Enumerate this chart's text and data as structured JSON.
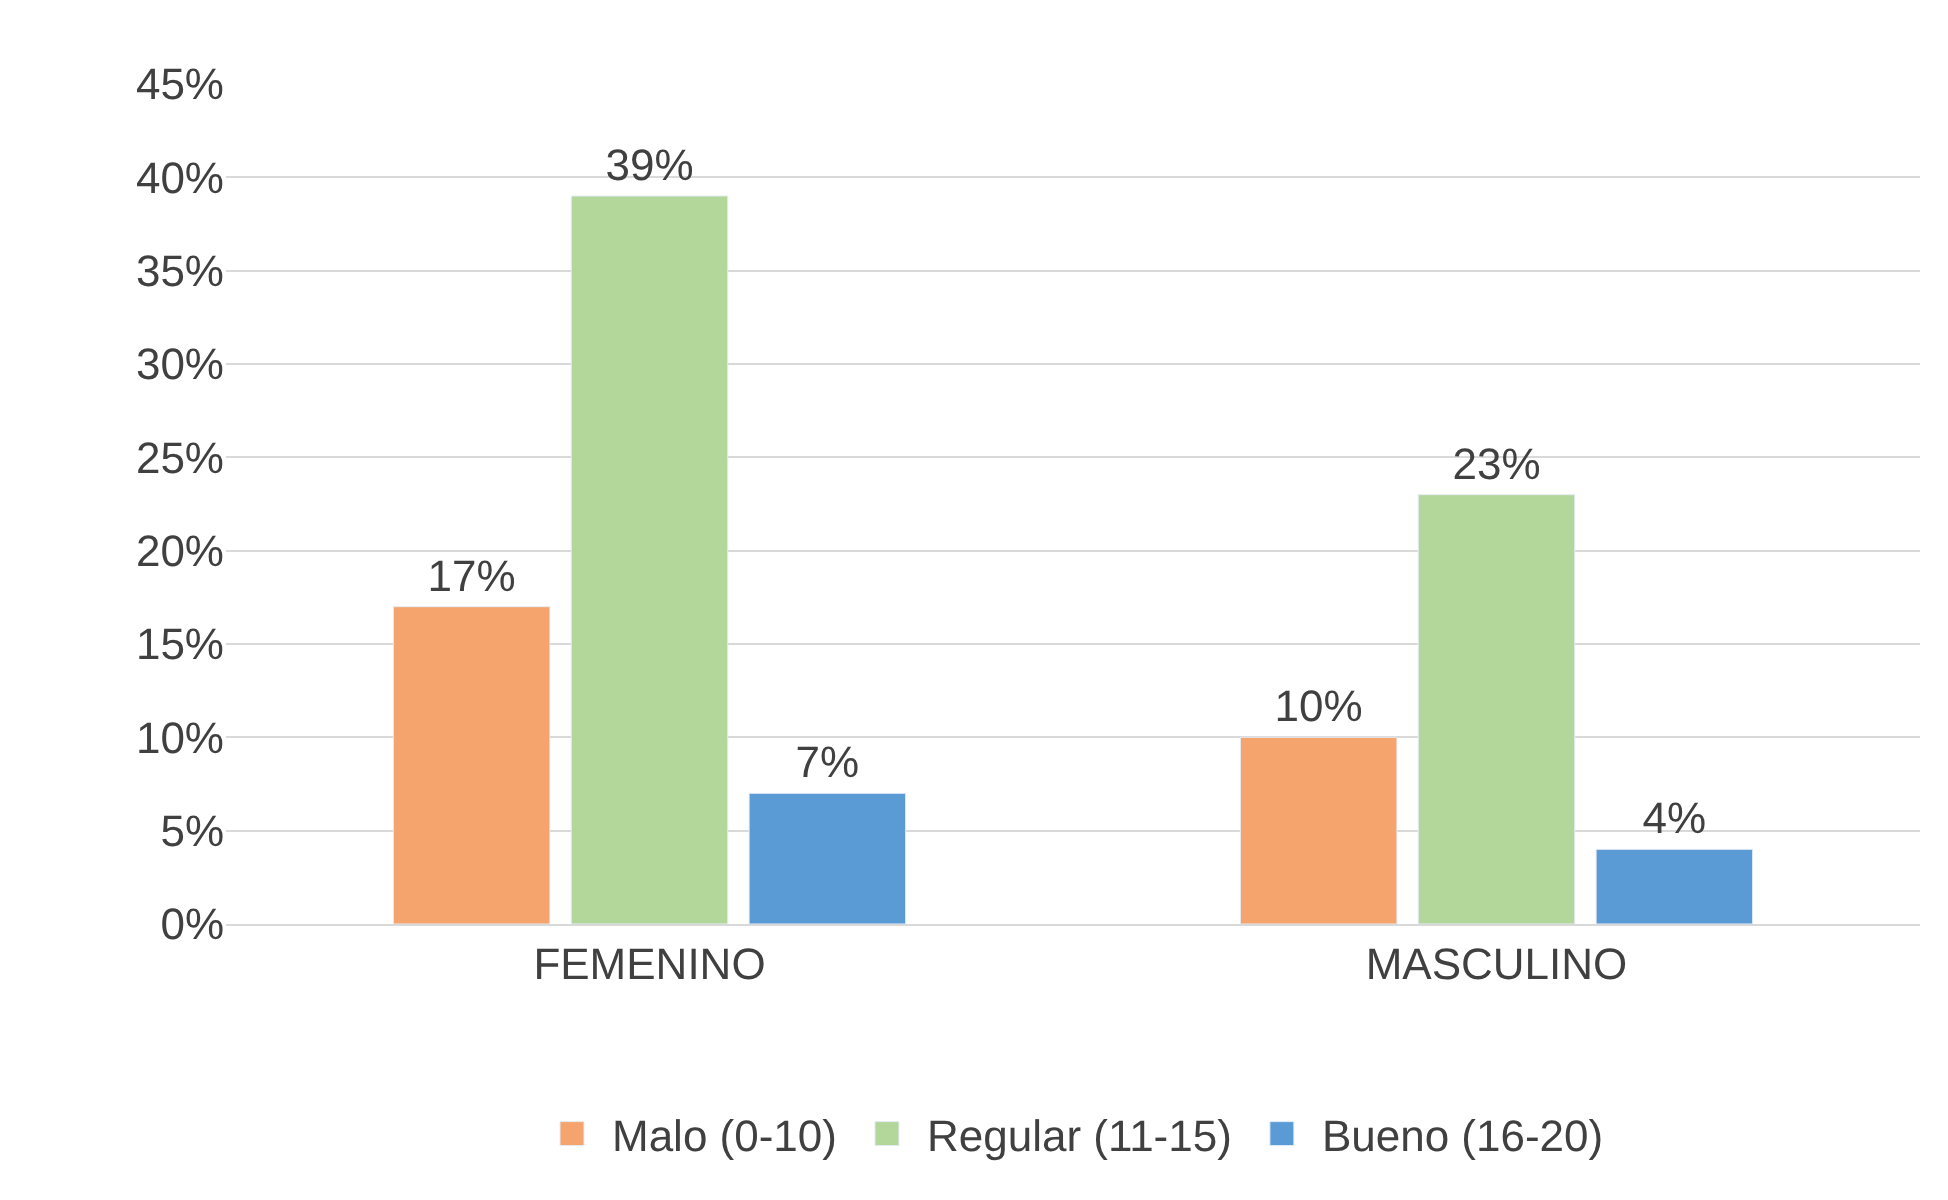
{
  "chart_data": {
    "type": "bar",
    "categories": [
      "FEMENINO",
      "MASCULINO"
    ],
    "series": [
      {
        "name": "Malo (0-10)",
        "color": "#f4a46c",
        "values": [
          17,
          10
        ]
      },
      {
        "name": "Regular (11-15)",
        "color": "#b3d69b",
        "values": [
          39,
          23
        ]
      },
      {
        "name": "Bueno (16-20)",
        "color": "#5b9bd5",
        "values": [
          7,
          4
        ]
      }
    ],
    "ylim": [
      0,
      45
    ],
    "yticks": [
      {
        "value": 0,
        "label": "0%"
      },
      {
        "value": 5,
        "label": "5%"
      },
      {
        "value": 10,
        "label": "10%"
      },
      {
        "value": 15,
        "label": "15%"
      },
      {
        "value": 20,
        "label": "20%"
      },
      {
        "value": 25,
        "label": "25%"
      },
      {
        "value": 30,
        "label": "30%"
      },
      {
        "value": 35,
        "label": "35%"
      },
      {
        "value": 40,
        "label": "40%"
      },
      {
        "value": 45,
        "label": "45%"
      }
    ],
    "value_labels": [
      [
        "17%",
        "10%"
      ],
      [
        "39%",
        "23%"
      ],
      [
        "7%",
        "4%"
      ]
    ],
    "grid": "y",
    "legend": "bottom"
  }
}
